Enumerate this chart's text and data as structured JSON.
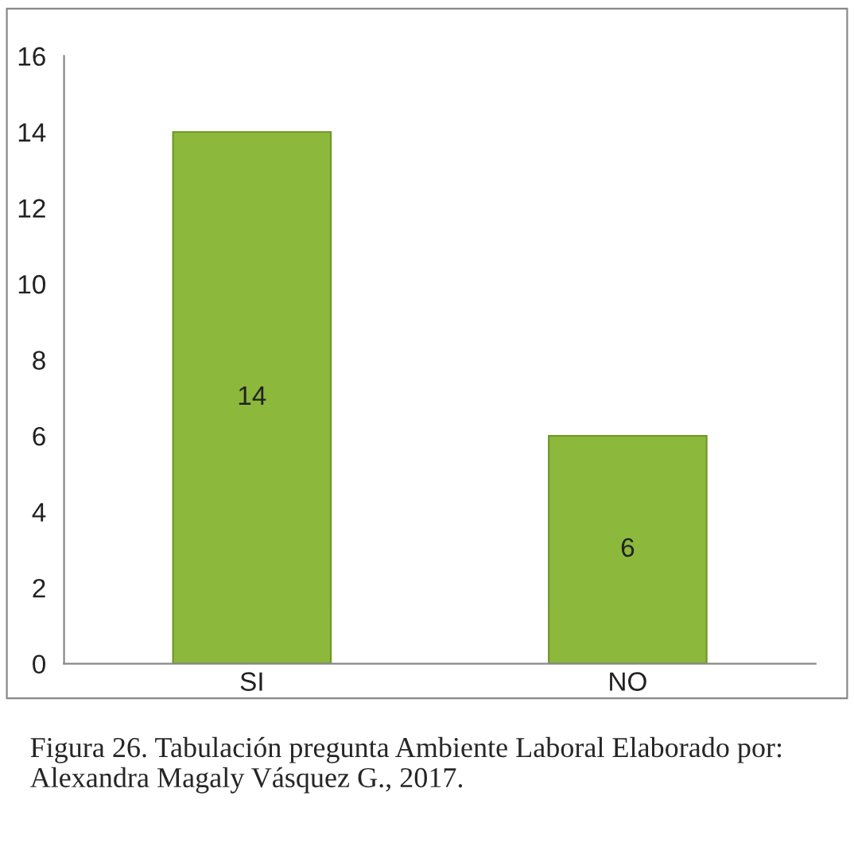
{
  "chart_data": {
    "type": "bar",
    "categories": [
      "SI",
      "NO"
    ],
    "values": [
      14,
      6
    ],
    "color": "#8cb83c",
    "ylim": [
      0,
      16
    ],
    "yticks": [
      0,
      2,
      4,
      6,
      8,
      10,
      12,
      14,
      16
    ],
    "grid": false,
    "data_labels": true,
    "annotations": [
      "Figura 26. Tabulación pregunta Ambiente Laboral Elaborado por: Alexandra Magaly Vásquez G., 2017."
    ]
  }
}
